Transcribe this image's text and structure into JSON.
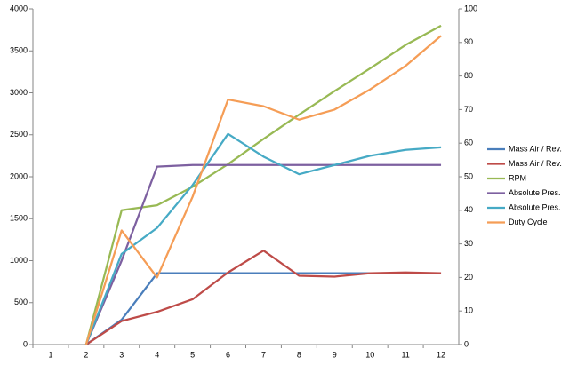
{
  "chart_data": {
    "type": "line",
    "categories": [
      "1",
      "2",
      "3",
      "4",
      "5",
      "6",
      "7",
      "8",
      "9",
      "10",
      "11",
      "12"
    ],
    "series": [
      {
        "name": "Mass Air / Rev.",
        "color": "#4a7ebb",
        "values": [
          null,
          0,
          296,
          850,
          850,
          850,
          850,
          850,
          850,
          850,
          850,
          850
        ]
      },
      {
        "name": "Mass Air / Rev.",
        "color": "#be4b48",
        "values": [
          null,
          0,
          280,
          390,
          540,
          860,
          1120,
          820,
          810,
          850,
          860,
          850
        ]
      },
      {
        "name": "RPM",
        "color": "#98b954",
        "values": [
          null,
          0,
          1600,
          1660,
          1880,
          2150,
          2450,
          2740,
          3020,
          3290,
          3570,
          3800
        ]
      },
      {
        "name": "Absolute Pres.",
        "color": "#7d60a0",
        "values": [
          null,
          0,
          1000,
          2120,
          2140,
          2140,
          2140,
          2140,
          2140,
          2140,
          2140,
          2140
        ]
      },
      {
        "name": "Absolute Pres.",
        "color": "#46aac5",
        "values": [
          null,
          0,
          1080,
          1390,
          1900,
          2510,
          2240,
          2030,
          2140,
          2250,
          2320,
          2350
        ]
      },
      {
        "name": "Duty Cycle",
        "color": "#f59d56",
        "axis": "y2",
        "values": [
          null,
          0,
          34,
          20,
          44,
          73,
          71,
          67,
          70,
          76,
          83,
          92
        ]
      }
    ],
    "ylim": [
      0,
      4000
    ],
    "yticks": [
      0,
      500,
      1000,
      1500,
      2000,
      2500,
      3000,
      3500,
      4000
    ],
    "y2lim": [
      0,
      100
    ],
    "y2ticks": [
      0,
      10,
      20,
      30,
      40,
      50,
      60,
      70,
      80,
      90,
      100
    ],
    "grid": false,
    "legend": "right"
  }
}
